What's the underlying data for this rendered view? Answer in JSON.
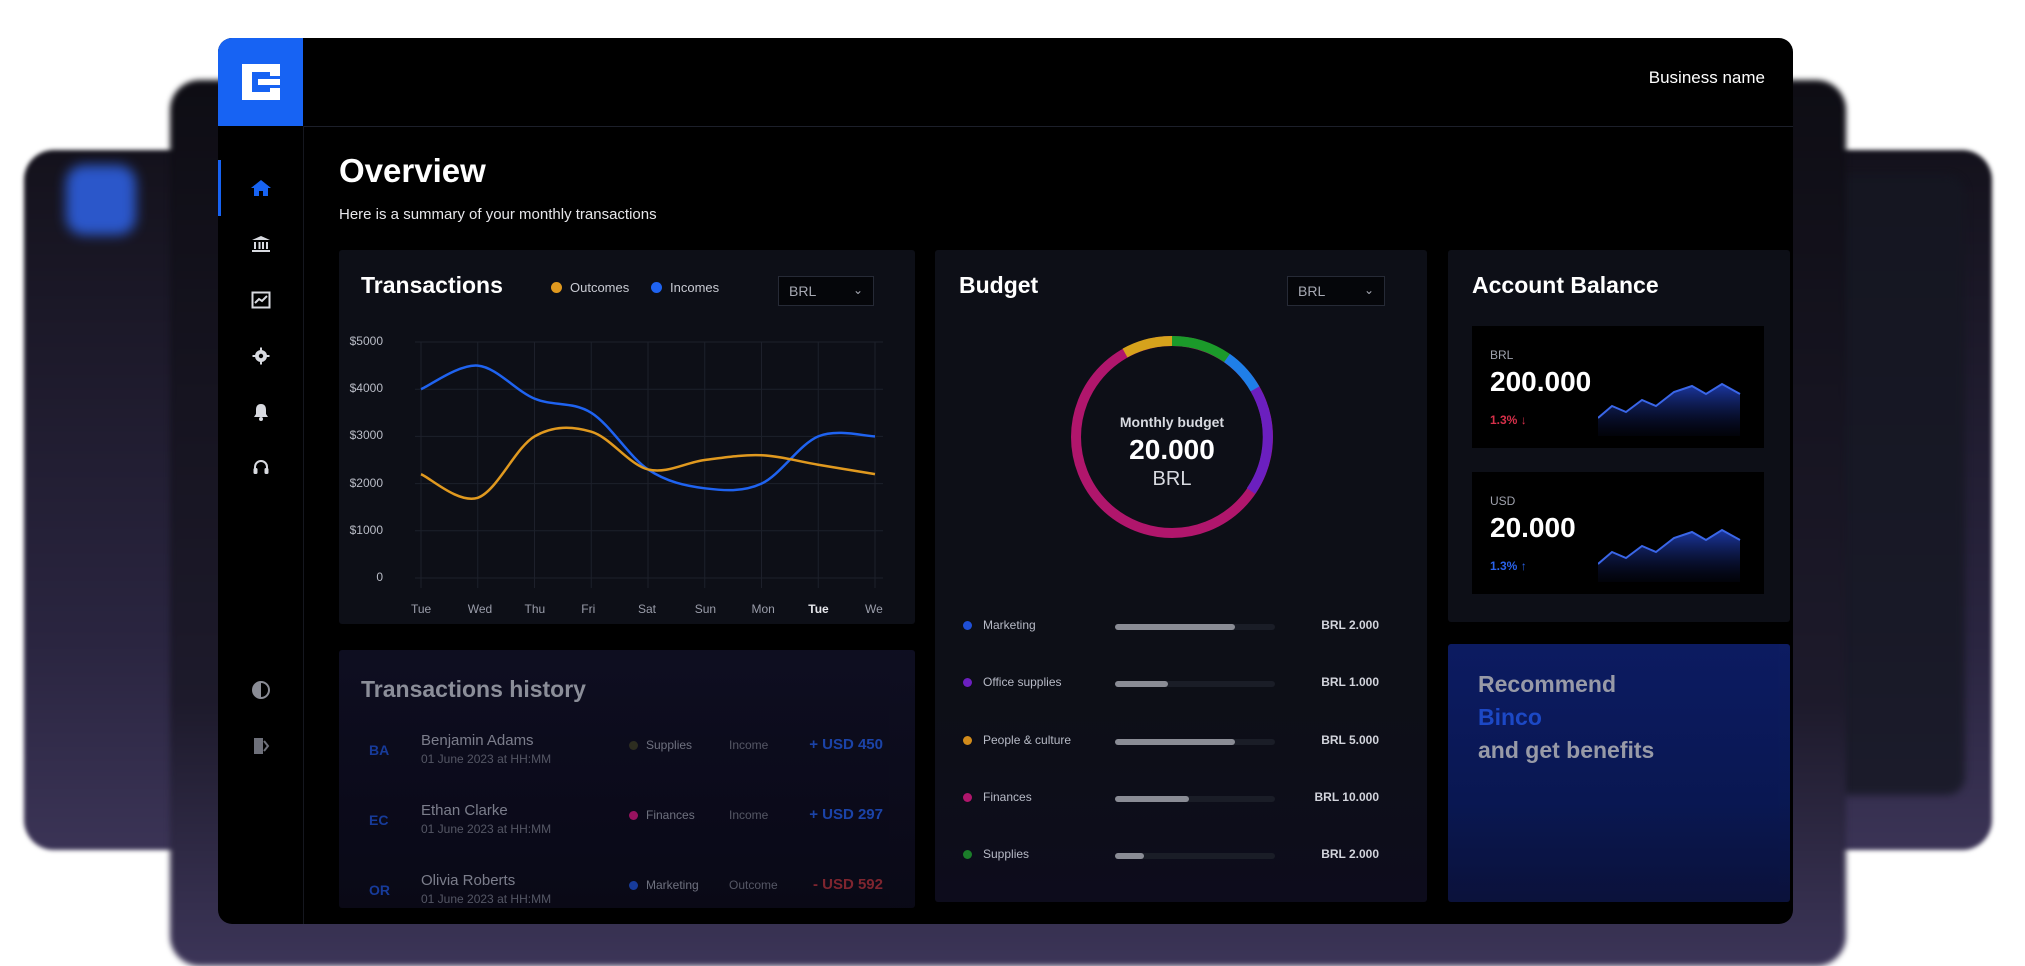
{
  "header": {
    "business_name": "Business name"
  },
  "page": {
    "title": "Overview",
    "subtitle": "Here is a summary of your monthly transactions"
  },
  "sidebar": {
    "items": [
      {
        "name": "home",
        "active": true
      },
      {
        "name": "bank"
      },
      {
        "name": "analytics"
      },
      {
        "name": "settings"
      },
      {
        "name": "notifications"
      },
      {
        "name": "support"
      }
    ],
    "bottom": [
      {
        "name": "theme-toggle"
      },
      {
        "name": "logout"
      }
    ]
  },
  "transactions": {
    "title": "Transactions",
    "legend": [
      {
        "label": "Outcomes",
        "color": "#e0991f"
      },
      {
        "label": "Incomes",
        "color": "#1f63f0"
      }
    ],
    "currency": "BRL",
    "y_ticks": [
      "$5000",
      "$4000",
      "$3000",
      "$2000",
      "$1000",
      "0"
    ],
    "x_ticks": [
      "Tue",
      "Wed",
      "Thu",
      "Fri",
      "Sat",
      "Sun",
      "Mon",
      "Tue",
      "We"
    ]
  },
  "chart_data": {
    "type": "line",
    "title": "Transactions",
    "x": [
      "Tue",
      "Wed",
      "Thu",
      "Fri",
      "Sat",
      "Sun",
      "Mon",
      "Tue",
      "We"
    ],
    "ylim": [
      0,
      5000
    ],
    "series": [
      {
        "name": "Incomes",
        "color": "#1f63f0",
        "values": [
          4000,
          4500,
          3800,
          3500,
          2300,
          1900,
          2000,
          3000,
          3000
        ]
      },
      {
        "name": "Outcomes",
        "color": "#e0991f",
        "values": [
          2200,
          1700,
          3000,
          3100,
          2300,
          2500,
          2600,
          2400,
          2200
        ]
      }
    ],
    "grid": true
  },
  "history": {
    "title": "Transactions history",
    "rows": [
      {
        "initials": "BA",
        "name": "Benjamin Adams",
        "date": "01 June 2023 at HH:MM",
        "category": "Supplies",
        "cat_color": "#3a3a2a",
        "type": "Income",
        "amount": "+ USD 450",
        "amount_color": "#2357d8"
      },
      {
        "initials": "EC",
        "name": "Ethan Clarke",
        "date": "01 June 2023 at HH:MM",
        "category": "Finances",
        "cat_color": "#c2187a",
        "type": "Income",
        "amount": "+ USD 297",
        "amount_color": "#2357d8"
      },
      {
        "initials": "OR",
        "name": "Olivia Roberts",
        "date": "01 June 2023 at HH:MM",
        "category": "Marketing",
        "cat_color": "#1e4cc6",
        "type": "Outcome",
        "amount": "- USD 592",
        "amount_color": "#a3303d"
      }
    ]
  },
  "budget": {
    "title": "Budget",
    "currency": "BRL",
    "center_label": "Monthly budget",
    "center_value": "20.000",
    "center_unit": "BRL",
    "items": [
      {
        "label": "Marketing",
        "amount": "BRL 2.000",
        "color": "#1f4fd6",
        "fill": 0.75
      },
      {
        "label": "Office supplies",
        "amount": "BRL 1.000",
        "color": "#6b1fbf",
        "fill": 0.33
      },
      {
        "label": "People & culture",
        "amount": "BRL 5.000",
        "color": "#d18b1b",
        "fill": 0.75
      },
      {
        "label": "Finances",
        "amount": "BRL 10.000",
        "color": "#b0166c",
        "fill": 0.46
      },
      {
        "label": "Supplies",
        "amount": "BRL 2.000",
        "color": "#1b7d2a",
        "fill": 0.18
      }
    ]
  },
  "balance": {
    "title": "Account Balance",
    "accounts": [
      {
        "currency": "BRL",
        "value": "200.000",
        "change": "1.3%",
        "direction": "down",
        "change_color": "#d6304a",
        "arrow": "↓"
      },
      {
        "currency": "USD",
        "value": "20.000",
        "change": "1.3%",
        "direction": "up",
        "change_color": "#2a62ea",
        "arrow": "↑"
      }
    ]
  },
  "promo": {
    "line1": "Recommend",
    "line2": "Binco",
    "line3": "and get benefits"
  }
}
